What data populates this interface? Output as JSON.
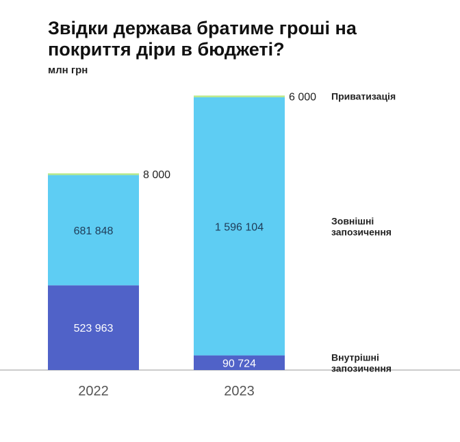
{
  "title": "Звідки держава братиме гроші на покриття діри в бюджеті?",
  "unit": "млн грн",
  "colors": {
    "domestic": "#5062c8",
    "external": "#5ecdf3",
    "privatization": "#b9e88a",
    "axis": "#9a9a9a",
    "segment_text_dark": "#1f3b57",
    "segment_text_light": "#ffffff"
  },
  "chart_data": {
    "type": "bar",
    "stacked": true,
    "categories": [
      "2022",
      "2023"
    ],
    "series": [
      {
        "key": "domestic",
        "name": "Внутрішні запозичення",
        "values": [
          523963,
          90724
        ],
        "labels": [
          "523 963",
          "90 724"
        ]
      },
      {
        "key": "external",
        "name": "Зовнішні запозичення",
        "values": [
          681848,
          1596104
        ],
        "labels": [
          "681 848",
          "1 596 104"
        ]
      },
      {
        "key": "privatization",
        "name": "Приватизація",
        "values": [
          8000,
          6000
        ],
        "labels": [
          "8 000",
          "6 000"
        ]
      }
    ],
    "legend": [
      {
        "key": "privatization",
        "lines": [
          "Приватизація"
        ]
      },
      {
        "key": "external",
        "lines": [
          "Зовнішні",
          "запозичення"
        ]
      },
      {
        "key": "domestic",
        "lines": [
          "Внутрішні",
          "запозичення"
        ]
      }
    ],
    "ylim": [
      0,
      1700000
    ],
    "grid": false
  }
}
